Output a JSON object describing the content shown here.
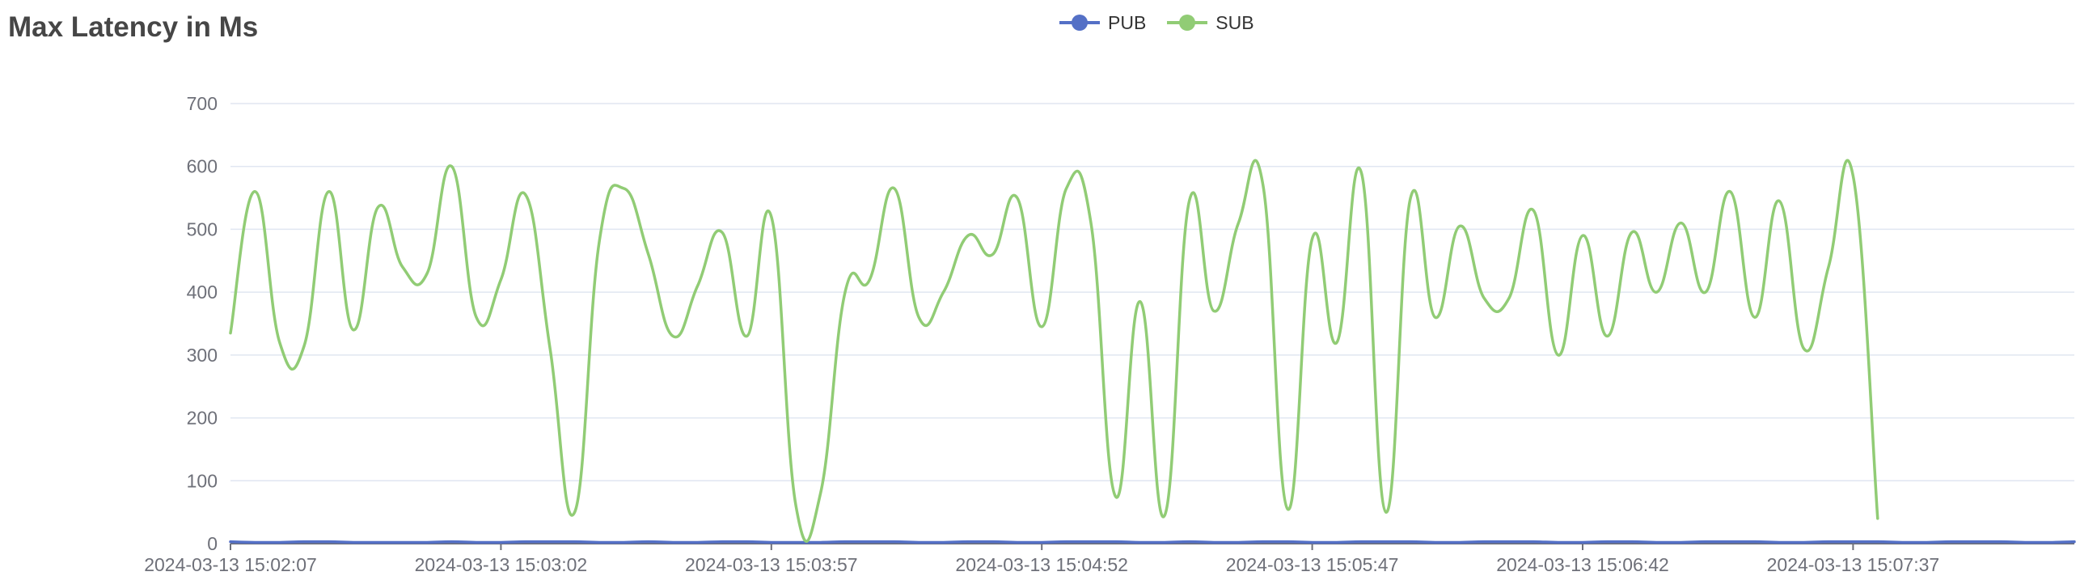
{
  "title": "Max Latency in Ms",
  "legend": [
    {
      "name": "PUB",
      "color": "#5470c6"
    },
    {
      "name": "SUB",
      "color": "#91cc75"
    }
  ],
  "chart_data": {
    "type": "line",
    "title": "Max Latency in Ms",
    "xlabel": "",
    "ylabel": "",
    "ylim": [
      0,
      700
    ],
    "y_ticks": [
      0,
      100,
      200,
      300,
      400,
      500,
      600,
      700
    ],
    "grid": true,
    "legend_position": "top",
    "x_tick_labels": [
      "2024-03-13 15:02:07",
      "2024-03-13 15:03:02",
      "2024-03-13 15:03:57",
      "2024-03-13 15:04:52",
      "2024-03-13 15:05:47",
      "2024-03-13 15:06:42",
      "2024-03-13 15:07:37"
    ],
    "x_tick_index": [
      0,
      11,
      22,
      33,
      44,
      55,
      66
    ],
    "series": [
      {
        "name": "PUB",
        "color": "#5470c6",
        "values": [
          3,
          2,
          2,
          3,
          3,
          2,
          2,
          2,
          2,
          3,
          2,
          2,
          3,
          3,
          3,
          2,
          2,
          3,
          2,
          2,
          3,
          3,
          2,
          2,
          2,
          3,
          3,
          3,
          2,
          2,
          3,
          3,
          2,
          2,
          3,
          3,
          3,
          2,
          2,
          3,
          2,
          2,
          3,
          3,
          2,
          2,
          3,
          3,
          3,
          2,
          2,
          3,
          3,
          3,
          2,
          2,
          3,
          3,
          2,
          2,
          3,
          3,
          3,
          2,
          2,
          3,
          3,
          3,
          2,
          2,
          3,
          3,
          3,
          2,
          2,
          3
        ]
      },
      {
        "name": "SUB",
        "color": "#91cc75",
        "values": [
          335,
          560,
          320,
          315,
          560,
          340,
          535,
          440,
          430,
          600,
          360,
          420,
          555,
          310,
          50,
          480,
          565,
          460,
          330,
          410,
          495,
          330,
          520,
          60,
          80,
          400,
          420,
          565,
          360,
          400,
          490,
          460,
          550,
          345,
          565,
          510,
          75,
          385,
          45,
          545,
          370,
          510,
          570,
          55,
          485,
          320,
          590,
          50,
          550,
          360,
          505,
          390,
          390,
          530,
          300,
          490,
          330,
          495,
          400,
          510,
          400,
          560,
          360,
          545,
          310,
          440,
          585,
          40
        ]
      }
    ]
  }
}
